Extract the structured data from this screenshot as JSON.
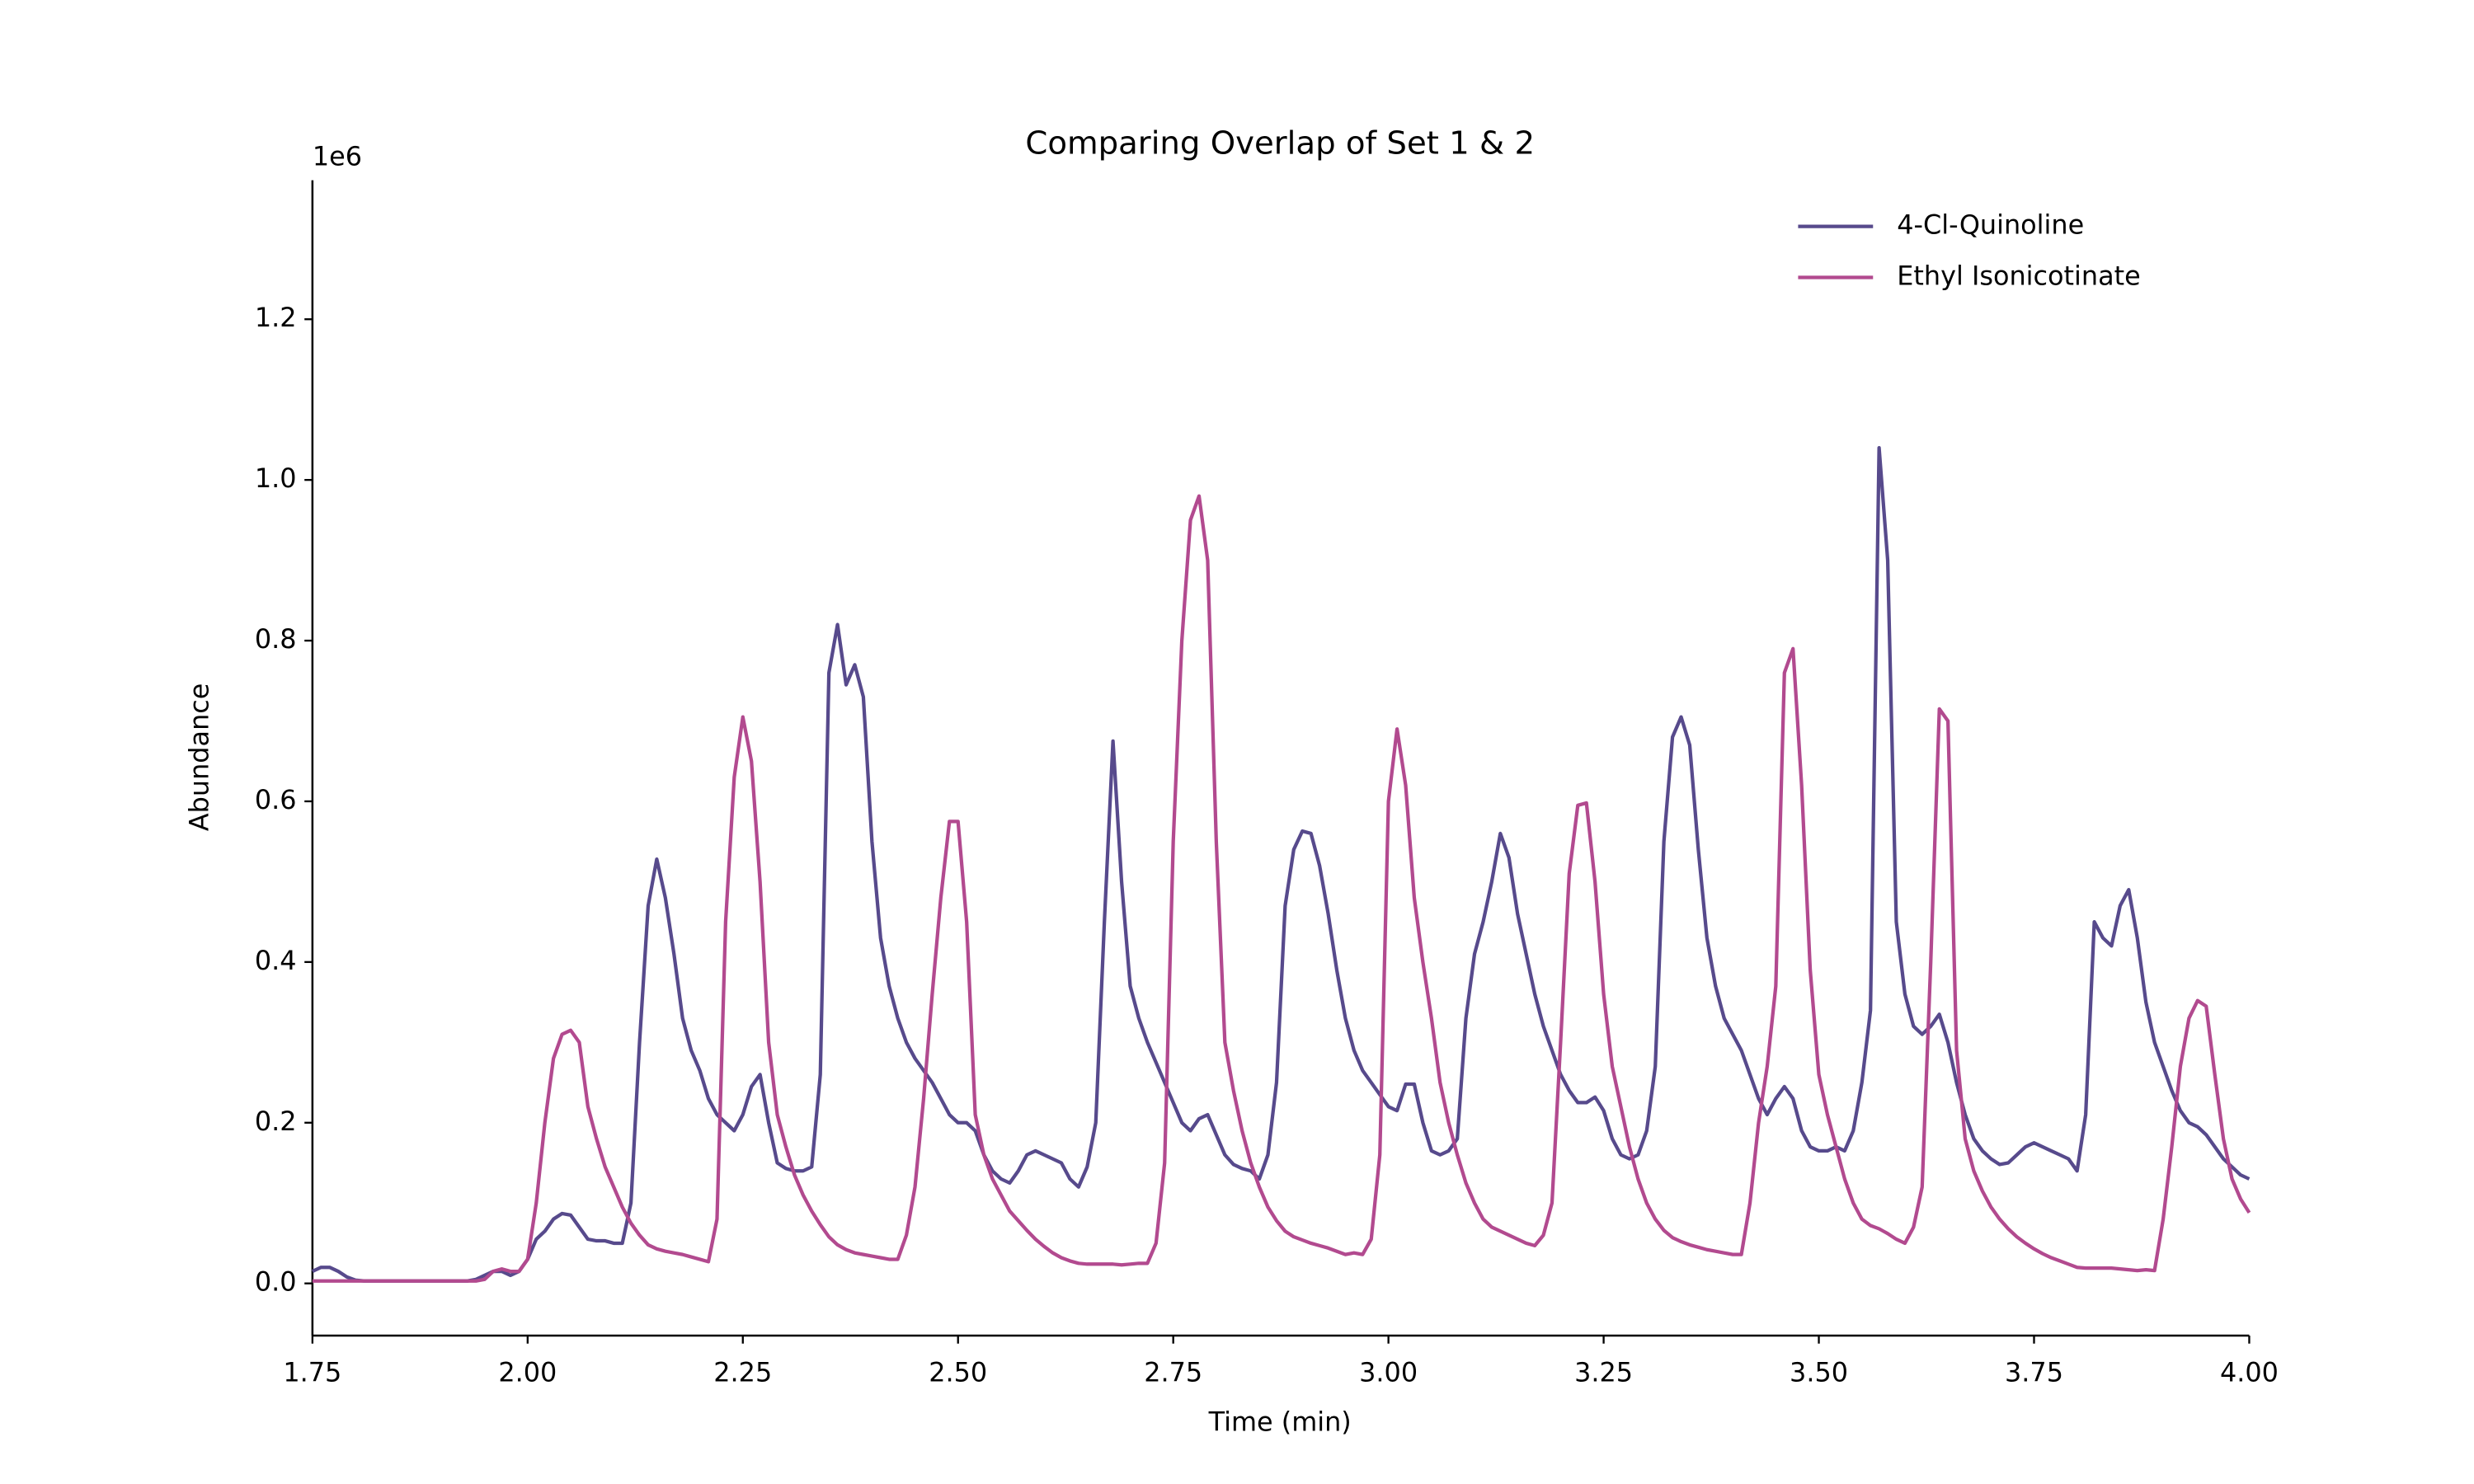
{
  "chart_data": {
    "type": "line",
    "title": "Comparing Overlap of Set 1 & 2",
    "x_label": "Time (min)",
    "y_label": "Abundance",
    "y_offset_label": "1e6",
    "xlim": [
      1.75,
      4.0
    ],
    "ylim": [
      -0.065,
      1.373
    ],
    "xticks": [
      1.75,
      {
        "value": 2,
        "label": "2.00"
      },
      2.25,
      {
        "value": 2.5,
        "label": "2.50"
      },
      2.75,
      {
        "value": 3,
        "label": "3.00"
      },
      3.25,
      {
        "value": 3.5,
        "label": "3.50"
      },
      3.75,
      {
        "value": 4,
        "label": "4.00"
      }
    ],
    "yticks": [
      {
        "value": 0,
        "label": "0.0"
      },
      0.2,
      0.4,
      0.6,
      0.8,
      {
        "value": 1,
        "label": "1.0"
      },
      1.2
    ],
    "grid": false,
    "legend": "upper right",
    "x": [
      1.75,
      1.76,
      1.77,
      1.78,
      1.79,
      1.8,
      1.81,
      1.82,
      1.83,
      1.84,
      1.85,
      1.86,
      1.87,
      1.88,
      1.89,
      1.9,
      1.91,
      1.92,
      1.93,
      1.94,
      1.95,
      1.96,
      1.97,
      1.98,
      1.99,
      2.0,
      2.01,
      2.02,
      2.03,
      2.04,
      2.05,
      2.06,
      2.07,
      2.08,
      2.09,
      2.1,
      2.11,
      2.12,
      2.13,
      2.14,
      2.15,
      2.16,
      2.17,
      2.18,
      2.19,
      2.2,
      2.21,
      2.22,
      2.23,
      2.24,
      2.25,
      2.26,
      2.27,
      2.28,
      2.29,
      2.3,
      2.31,
      2.32,
      2.33,
      2.34,
      2.35,
      2.36,
      2.37,
      2.38,
      2.39,
      2.4,
      2.41,
      2.42,
      2.43,
      2.44,
      2.45,
      2.46,
      2.47,
      2.48,
      2.49,
      2.5,
      2.51,
      2.52,
      2.53,
      2.54,
      2.55,
      2.56,
      2.57,
      2.58,
      2.59,
      2.6,
      2.61,
      2.62,
      2.63,
      2.64,
      2.65,
      2.66,
      2.67,
      2.68,
      2.69,
      2.7,
      2.71,
      2.72,
      2.73,
      2.74,
      2.75,
      2.76,
      2.77,
      2.78,
      2.79,
      2.8,
      2.81,
      2.82,
      2.83,
      2.84,
      2.85,
      2.86,
      2.87,
      2.88,
      2.89,
      2.9,
      2.91,
      2.92,
      2.93,
      2.94,
      2.95,
      2.96,
      2.97,
      2.98,
      2.99,
      3.0,
      3.01,
      3.02,
      3.03,
      3.04,
      3.05,
      3.06,
      3.07,
      3.08,
      3.09,
      3.1,
      3.11,
      3.12,
      3.13,
      3.14,
      3.15,
      3.16,
      3.17,
      3.18,
      3.19,
      3.2,
      3.21,
      3.22,
      3.23,
      3.24,
      3.25,
      3.26,
      3.27,
      3.28,
      3.29,
      3.3,
      3.31,
      3.32,
      3.33,
      3.34,
      3.35,
      3.36,
      3.37,
      3.38,
      3.39,
      3.4,
      3.41,
      3.42,
      3.43,
      3.44,
      3.45,
      3.46,
      3.47,
      3.48,
      3.49,
      3.5,
      3.51,
      3.52,
      3.53,
      3.54,
      3.55,
      3.56,
      3.57,
      3.58,
      3.59,
      3.6,
      3.61,
      3.62,
      3.63,
      3.64,
      3.65,
      3.66,
      3.67,
      3.68,
      3.69,
      3.7,
      3.71,
      3.72,
      3.73,
      3.74,
      3.75,
      3.76,
      3.77,
      3.78,
      3.79,
      3.8,
      3.81,
      3.82,
      3.83,
      3.84,
      3.85,
      3.86,
      3.87,
      3.88,
      3.89,
      3.9,
      3.91,
      3.92,
      3.93,
      3.94,
      3.95,
      3.96,
      3.97,
      3.98,
      3.99,
      4.0
    ],
    "series": [
      {
        "name": "4-Cl-Quinoline",
        "color": "#574a8c",
        "values": [
          0.015,
          0.02,
          0.02,
          0.015,
          0.008,
          0.004,
          0.003,
          0.003,
          0.003,
          0.003,
          0.003,
          0.003,
          0.003,
          0.003,
          0.003,
          0.003,
          0.003,
          0.003,
          0.003,
          0.005,
          0.01,
          0.015,
          0.015,
          0.01,
          0.015,
          0.03,
          0.055,
          0.065,
          0.08,
          0.087,
          0.085,
          0.07,
          0.055,
          0.053,
          0.053,
          0.05,
          0.05,
          0.1,
          0.3,
          0.47,
          0.528,
          0.48,
          0.41,
          0.33,
          0.29,
          0.265,
          0.23,
          0.21,
          0.2,
          0.19,
          0.21,
          0.245,
          0.26,
          0.2,
          0.15,
          0.143,
          0.14,
          0.14,
          0.145,
          0.26,
          0.76,
          0.82,
          0.745,
          0.77,
          0.73,
          0.55,
          0.43,
          0.37,
          0.33,
          0.3,
          0.28,
          0.265,
          0.25,
          0.23,
          0.21,
          0.2,
          0.2,
          0.19,
          0.16,
          0.14,
          0.13,
          0.125,
          0.14,
          0.16,
          0.165,
          0.16,
          0.155,
          0.15,
          0.13,
          0.12,
          0.145,
          0.2,
          0.45,
          0.675,
          0.5,
          0.37,
          0.33,
          0.3,
          0.275,
          0.25,
          0.225,
          0.2,
          0.19,
          0.205,
          0.21,
          0.185,
          0.16,
          0.148,
          0.143,
          0.14,
          0.13,
          0.16,
          0.25,
          0.47,
          0.54,
          0.563,
          0.56,
          0.52,
          0.46,
          0.39,
          0.33,
          0.29,
          0.265,
          0.25,
          0.235,
          0.22,
          0.215,
          0.248,
          0.248,
          0.2,
          0.165,
          0.16,
          0.165,
          0.18,
          0.33,
          0.41,
          0.45,
          0.5,
          0.56,
          0.53,
          0.46,
          0.41,
          0.36,
          0.32,
          0.29,
          0.26,
          0.24,
          0.225,
          0.225,
          0.232,
          0.215,
          0.18,
          0.16,
          0.155,
          0.16,
          0.19,
          0.27,
          0.55,
          0.68,
          0.705,
          0.67,
          0.54,
          0.43,
          0.37,
          0.33,
          0.31,
          0.29,
          0.26,
          0.23,
          0.21,
          0.23,
          0.245,
          0.23,
          0.19,
          0.17,
          0.165,
          0.165,
          0.17,
          0.165,
          0.19,
          0.25,
          0.34,
          1.04,
          0.9,
          0.45,
          0.36,
          0.32,
          0.31,
          0.32,
          0.335,
          0.3,
          0.25,
          0.21,
          0.18,
          0.165,
          0.155,
          0.148,
          0.15,
          0.16,
          0.17,
          0.175,
          0.17,
          0.165,
          0.16,
          0.155,
          0.14,
          0.21,
          0.45,
          0.43,
          0.42,
          0.47,
          0.49,
          0.43,
          0.35,
          0.3,
          0.27,
          0.24,
          0.215,
          0.2,
          0.195,
          0.185,
          0.17,
          0.155,
          0.145,
          0.135,
          0.13
        ]
      },
      {
        "name": "Ethyl Isonicotinate",
        "color": "#b24a8f",
        "values": [
          0.003,
          0.003,
          0.003,
          0.003,
          0.003,
          0.003,
          0.003,
          0.003,
          0.003,
          0.003,
          0.003,
          0.003,
          0.003,
          0.003,
          0.003,
          0.003,
          0.003,
          0.003,
          0.003,
          0.003,
          0.005,
          0.015,
          0.018,
          0.015,
          0.015,
          0.03,
          0.1,
          0.2,
          0.28,
          0.31,
          0.315,
          0.3,
          0.22,
          0.18,
          0.145,
          0.12,
          0.095,
          0.075,
          0.06,
          0.048,
          0.043,
          0.04,
          0.038,
          0.036,
          0.033,
          0.03,
          0.027,
          0.08,
          0.45,
          0.63,
          0.705,
          0.65,
          0.5,
          0.3,
          0.21,
          0.17,
          0.135,
          0.11,
          0.09,
          0.073,
          0.058,
          0.048,
          0.042,
          0.038,
          0.036,
          0.034,
          0.032,
          0.03,
          0.03,
          0.06,
          0.12,
          0.23,
          0.36,
          0.48,
          0.575,
          0.575,
          0.45,
          0.21,
          0.16,
          0.13,
          0.11,
          0.09,
          0.078,
          0.066,
          0.055,
          0.046,
          0.038,
          0.032,
          0.028,
          0.025,
          0.024,
          0.024,
          0.024,
          0.024,
          0.023,
          0.024,
          0.025,
          0.025,
          0.05,
          0.15,
          0.55,
          0.8,
          0.95,
          0.98,
          0.9,
          0.55,
          0.3,
          0.24,
          0.19,
          0.15,
          0.12,
          0.095,
          0.078,
          0.065,
          0.058,
          0.054,
          0.05,
          0.047,
          0.044,
          0.04,
          0.036,
          0.038,
          0.036,
          0.055,
          0.16,
          0.6,
          0.69,
          0.62,
          0.48,
          0.4,
          0.33,
          0.25,
          0.2,
          0.16,
          0.125,
          0.1,
          0.08,
          0.07,
          0.065,
          0.06,
          0.055,
          0.05,
          0.047,
          0.06,
          0.1,
          0.3,
          0.51,
          0.595,
          0.598,
          0.5,
          0.36,
          0.27,
          0.22,
          0.17,
          0.13,
          0.1,
          0.08,
          0.066,
          0.057,
          0.052,
          0.048,
          0.045,
          0.042,
          0.04,
          0.038,
          0.036,
          0.036,
          0.1,
          0.2,
          0.27,
          0.37,
          0.76,
          0.79,
          0.62,
          0.39,
          0.26,
          0.21,
          0.17,
          0.13,
          0.1,
          0.08,
          0.072,
          0.068,
          0.062,
          0.055,
          0.05,
          0.07,
          0.12,
          0.4,
          0.715,
          0.7,
          0.29,
          0.18,
          0.14,
          0.115,
          0.095,
          0.08,
          0.068,
          0.058,
          0.05,
          0.043,
          0.037,
          0.032,
          0.028,
          0.024,
          0.02,
          0.019,
          0.019,
          0.019,
          0.019,
          0.018,
          0.017,
          0.016,
          0.017,
          0.016,
          0.08,
          0.17,
          0.27,
          0.33,
          0.352,
          0.345,
          0.26,
          0.18,
          0.13,
          0.105,
          0.088
        ]
      }
    ]
  }
}
